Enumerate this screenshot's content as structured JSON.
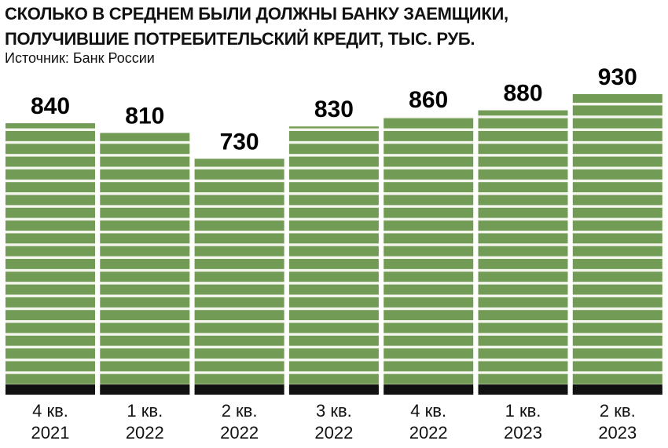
{
  "chart_data": {
    "type": "bar",
    "title": "СКОЛЬКО В СРЕДНЕМ БЫЛИ ДОЛЖНЫ БАНКУ ЗАЕМЩИКИ, ПОЛУЧИВШИЕ ПОТРЕБИТЕЛЬСКИЙ КРЕДИТ, ТЫС. РУБ.",
    "subtitle": "Источник: Банк России",
    "categories": [
      "4 кв. 2021",
      "1 кв. 2022",
      "2 кв. 2022",
      "3 кв. 2022",
      "4 кв. 2022",
      "1 кв. 2023",
      "2 кв. 2023"
    ],
    "values": [
      840,
      810,
      730,
      830,
      860,
      880,
      930
    ],
    "color": "#729b55"
  }
}
